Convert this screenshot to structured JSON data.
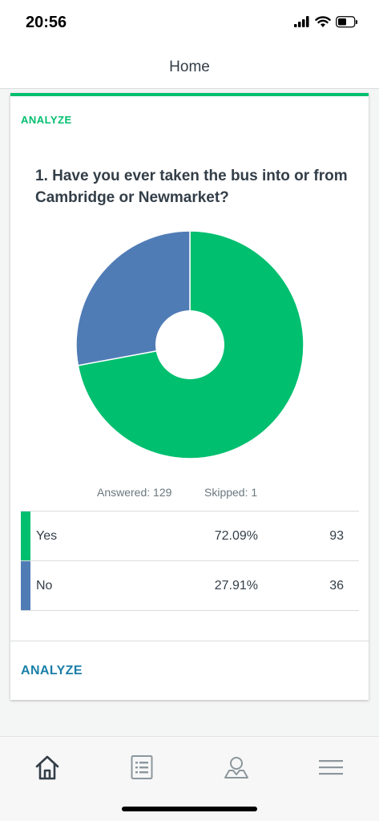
{
  "status_bar": {
    "time": "20:56"
  },
  "header": {
    "title": "Home"
  },
  "card": {
    "analyze_top_label": "ANALYZE",
    "question": "1. Have you ever taken the bus into or from Cambridge or Newmarket?",
    "stats": {
      "answered": "Answered: 129",
      "skipped": "Skipped: 1"
    },
    "rows": [
      {
        "label": "Yes",
        "percent": "72.09%",
        "count": "93",
        "color": "#00bf6f"
      },
      {
        "label": "No",
        "percent": "27.91%",
        "count": "36",
        "color": "#507cb6"
      }
    ],
    "analyze_bottom_label": "ANALYZE"
  },
  "chart_data": {
    "type": "pie",
    "categories": [
      "Yes",
      "No"
    ],
    "values": [
      72.09,
      27.91
    ],
    "colors": [
      "#00bf6f",
      "#507cb6"
    ],
    "donut": true
  },
  "tab_bar": {
    "tabs": [
      {
        "icon": "home-icon"
      },
      {
        "icon": "surveys-list-icon"
      },
      {
        "icon": "account-icon"
      },
      {
        "icon": "menu-icon"
      }
    ]
  },
  "colors": {
    "accent": "#00bf6f",
    "link": "#1a7fa8",
    "secondary": "#507cb6"
  }
}
